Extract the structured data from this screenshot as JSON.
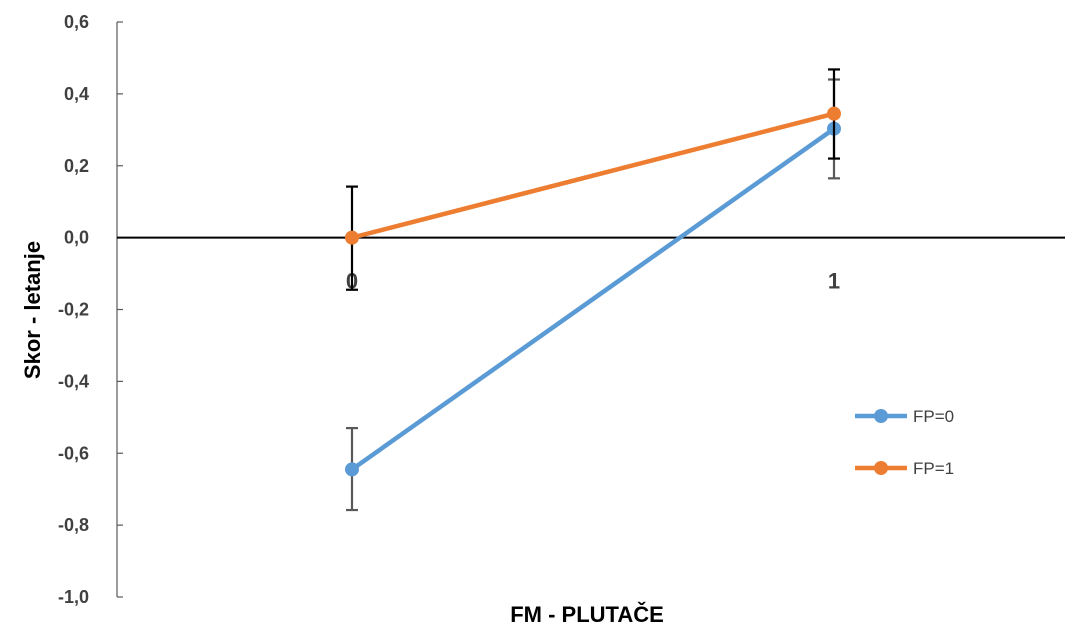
{
  "chart_data": {
    "type": "line",
    "xlabel": "FM - PLUTAČE",
    "ylabel": "Skor - letanje",
    "categories": [
      "0",
      "1"
    ],
    "y_tick_labels": [
      "0,6",
      "0,4",
      "0,2",
      "0,0",
      "-0,2",
      "-0,4",
      "-0,6",
      "-0,8",
      "-1,0"
    ],
    "ylim": [
      -1.0,
      0.6
    ],
    "grid": false,
    "legend_position": "right",
    "series": [
      {
        "name": "FP=0",
        "color": "#5B9BD5",
        "values": [
          -0.645,
          0.303
        ],
        "error_low": [
          -0.758,
          0.165
        ],
        "error_high": [
          -0.53,
          0.44
        ],
        "error_color": "#595959"
      },
      {
        "name": "FP=1",
        "color": "#ED7D31",
        "values": [
          0.0,
          0.345
        ],
        "error_low": [
          -0.145,
          0.22
        ],
        "error_high": [
          0.142,
          0.468
        ],
        "error_color": "#000000"
      }
    ]
  }
}
